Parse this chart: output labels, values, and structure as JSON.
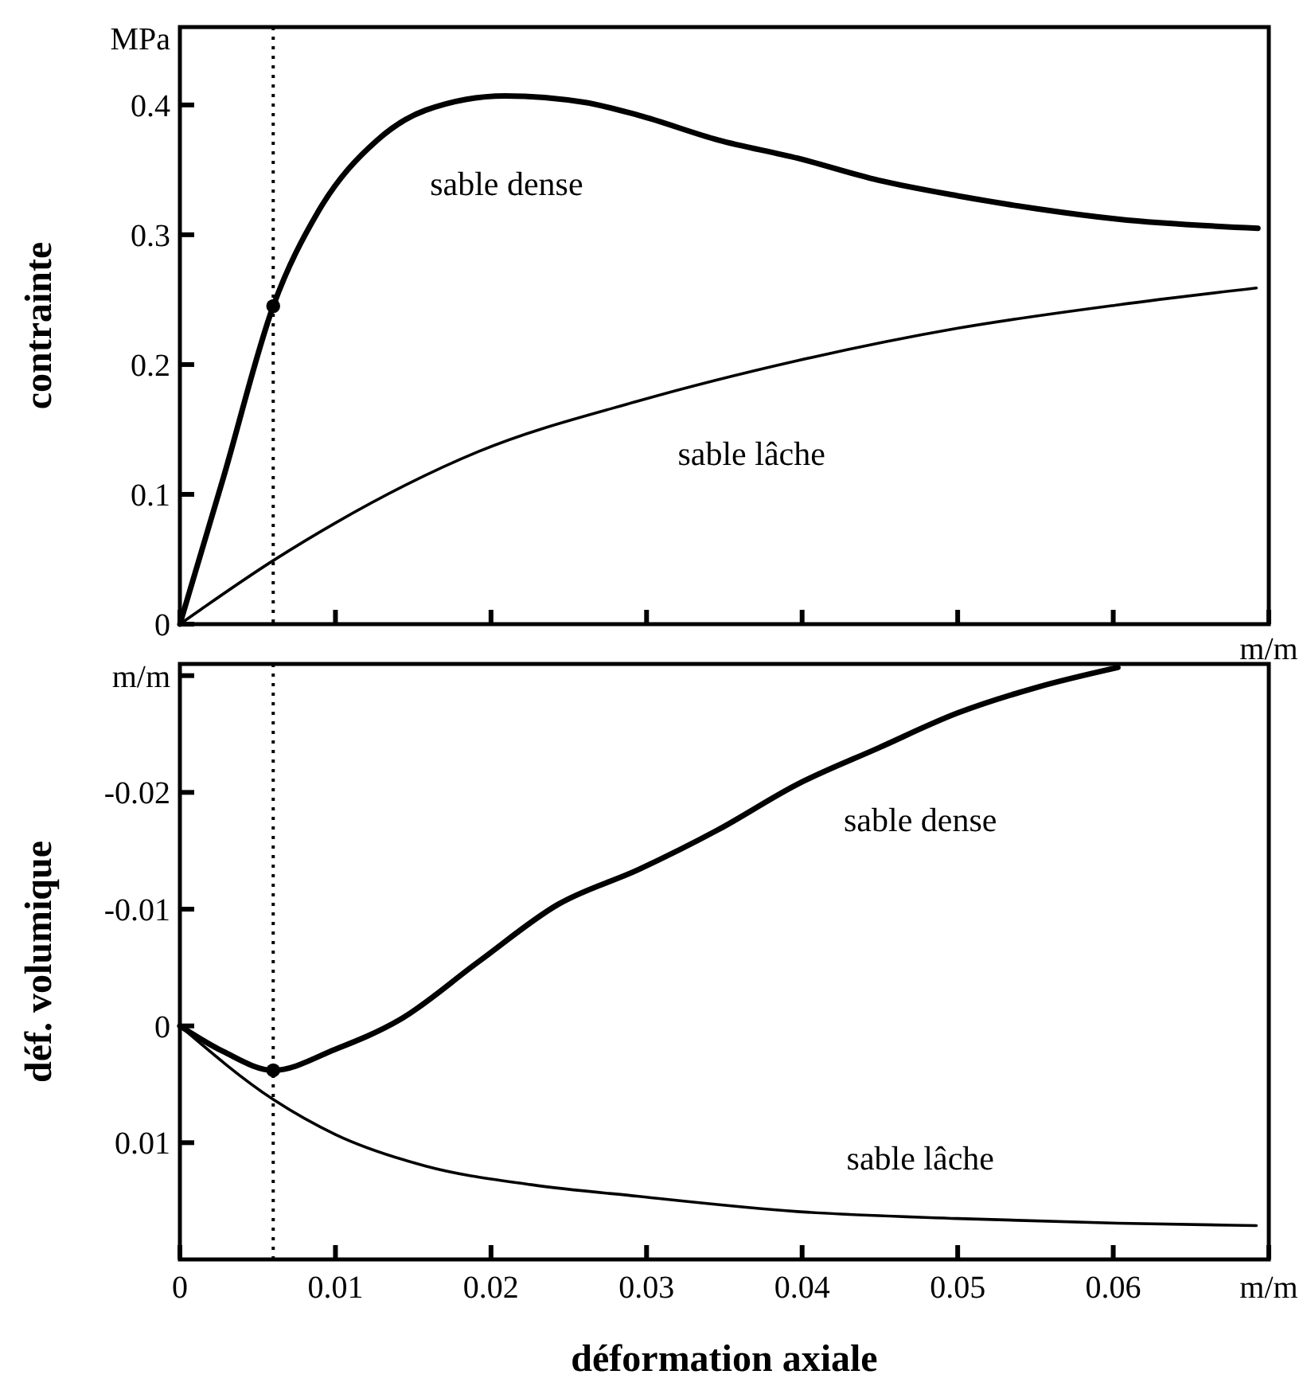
{
  "chart_data": [
    {
      "type": "line",
      "ylabel": "contrainte",
      "xlim": [
        0,
        0.07
      ],
      "ylim": [
        0,
        0.46
      ],
      "tick_labels": "y",
      "xticks": [
        0,
        0.01,
        0.02,
        0.03,
        0.04,
        0.05,
        0.06,
        0.07
      ],
      "yticks": [
        0,
        0.1,
        0.2,
        0.3,
        0.4
      ],
      "annotations": [
        "MPa",
        "m/m"
      ],
      "grid": false,
      "line_style": "solid",
      "ref_lines": [
        {
          "axis": "x",
          "value": 0.006,
          "label": null,
          "color": "#000000",
          "line_style": "dotted"
        }
      ],
      "series": [
        {
          "name": "sable dense",
          "color": "#000000",
          "x": [
            0,
            0.0028,
            0.006,
            0.0089,
            0.0127,
            0.0158,
            0.0209,
            0.026,
            0.0295,
            0.0346,
            0.0397,
            0.0449,
            0.05,
            0.0551,
            0.0603,
            0.0693
          ],
          "values": [
            0,
            0.113,
            0.245,
            0.318,
            0.373,
            0.396,
            0.407,
            0.402,
            0.392,
            0.373,
            0.359,
            0.342,
            0.33,
            0.32,
            0.312,
            0.305
          ]
        },
        {
          "name": "sable lâche",
          "color": "#000000",
          "x": [
            0,
            0.006,
            0.01,
            0.0192,
            0.0295,
            0.0397,
            0.05,
            0.0603,
            0.0692
          ],
          "values": [
            0,
            0.049,
            0.078,
            0.133,
            0.172,
            0.203,
            0.228,
            0.246,
            0.259
          ]
        },
        {
          "type": "scatter",
          "color": "#000000",
          "marker": "circle",
          "x": [
            0.006
          ],
          "values": [
            0.245
          ]
        }
      ]
    },
    {
      "type": "line",
      "ylabel": "déf. volumique",
      "xlabel": "déformation axiale",
      "xlim": [
        0,
        0.07
      ],
      "ylim": [
        0.02,
        -0.031
      ],
      "xticks": [
        0,
        0.01,
        0.02,
        0.03,
        0.04,
        0.05,
        0.06,
        {
          "value": 0.07,
          "label": "m/m"
        }
      ],
      "yticks": [
        0.01,
        0,
        -0.01,
        -0.02,
        {
          "value": -0.03,
          "label": "m/m"
        }
      ],
      "grid": false,
      "line_style": "solid",
      "ref_lines": [
        {
          "axis": "x",
          "value": 0.006,
          "label": null,
          "color": "#000000",
          "line_style": "dotted"
        }
      ],
      "series": [
        {
          "name": "sable dense",
          "color": "#000000",
          "x": [
            0,
            0.0028,
            0.006,
            0.01,
            0.0141,
            0.0192,
            0.0243,
            0.0295,
            0.0346,
            0.0397,
            0.0449,
            0.05,
            0.0551,
            0.0603
          ],
          "values": [
            0,
            0.0022,
            0.0038,
            0.002,
            -0.0005,
            -0.0055,
            -0.0104,
            -0.0134,
            -0.0168,
            -0.0207,
            -0.0238,
            -0.0268,
            -0.029,
            -0.0307
          ]
        },
        {
          "name": "sable lâche",
          "color": "#000000",
          "x": [
            0,
            0.006,
            0.01,
            0.0158,
            0.0226,
            0.0295,
            0.0397,
            0.05,
            0.0603,
            0.0692
          ],
          "values": [
            0,
            0.0063,
            0.0093,
            0.012,
            0.0136,
            0.0146,
            0.0159,
            0.0165,
            0.0169,
            0.0171
          ]
        },
        {
          "type": "scatter",
          "color": "#000000",
          "marker": "circle",
          "x": [
            0.006
          ],
          "values": [
            0.0038
          ]
        }
      ]
    }
  ]
}
